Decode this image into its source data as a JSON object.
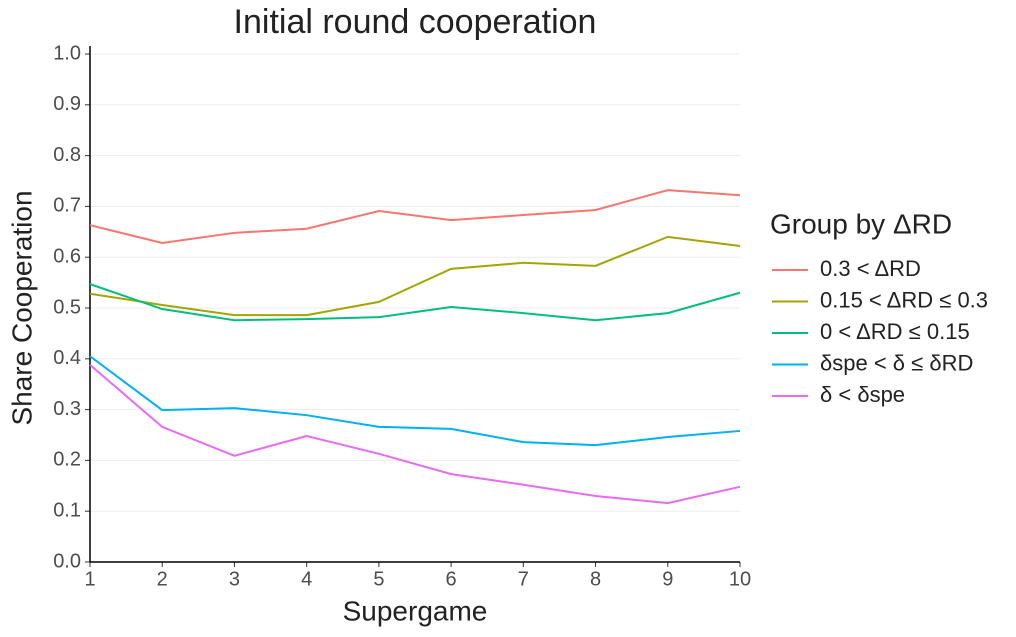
{
  "chart_data": {
    "type": "line",
    "title": "Initial round cooperation",
    "x_label": "Supergame",
    "y_label": "Share Cooperation",
    "legend_title": "Group by ΔRD",
    "legend_position": "right",
    "grid": true,
    "x": [
      1,
      2,
      3,
      4,
      5,
      6,
      7,
      8,
      9,
      10
    ],
    "xlim": [
      1,
      10
    ],
    "xticks": [
      1,
      2,
      3,
      4,
      5,
      6,
      7,
      8,
      9,
      10
    ],
    "ylim": [
      0,
      1
    ],
    "yticks": [
      {
        "value": 0,
        "label": "0.0"
      },
      0.1,
      0.2,
      0.3,
      0.4,
      0.5,
      0.6,
      0.7,
      0.8,
      0.9,
      {
        "value": 1,
        "label": "1.0"
      }
    ],
    "series": [
      {
        "name": "0.3 < ΔRD",
        "color": "#f8766d",
        "values": [
          0.663,
          0.628,
          0.648,
          0.656,
          0.691,
          0.673,
          0.683,
          0.693,
          0.732,
          0.722
        ]
      },
      {
        "name": "0.15 < ΔRD ≤ 0.3",
        "color": "#a3a500",
        "values": [
          0.528,
          0.506,
          0.486,
          0.486,
          0.512,
          0.577,
          0.589,
          0.583,
          0.64,
          0.622
        ]
      },
      {
        "name": "0 < ΔRD ≤ 0.15",
        "color": "#00bf7d",
        "values": [
          0.547,
          0.498,
          0.476,
          0.478,
          0.482,
          0.502,
          0.49,
          0.476,
          0.49,
          0.53
        ]
      },
      {
        "name": "δspe < δ ≤ δRD",
        "color": "#00b0f6",
        "values": [
          0.405,
          0.299,
          0.303,
          0.289,
          0.266,
          0.262,
          0.236,
          0.23,
          0.246,
          0.258
        ]
      },
      {
        "name": "δ < δspe",
        "color": "#e76bf3",
        "values": [
          0.388,
          0.266,
          0.209,
          0.248,
          0.213,
          0.173,
          0.152,
          0.13,
          0.116,
          0.148
        ]
      }
    ]
  }
}
